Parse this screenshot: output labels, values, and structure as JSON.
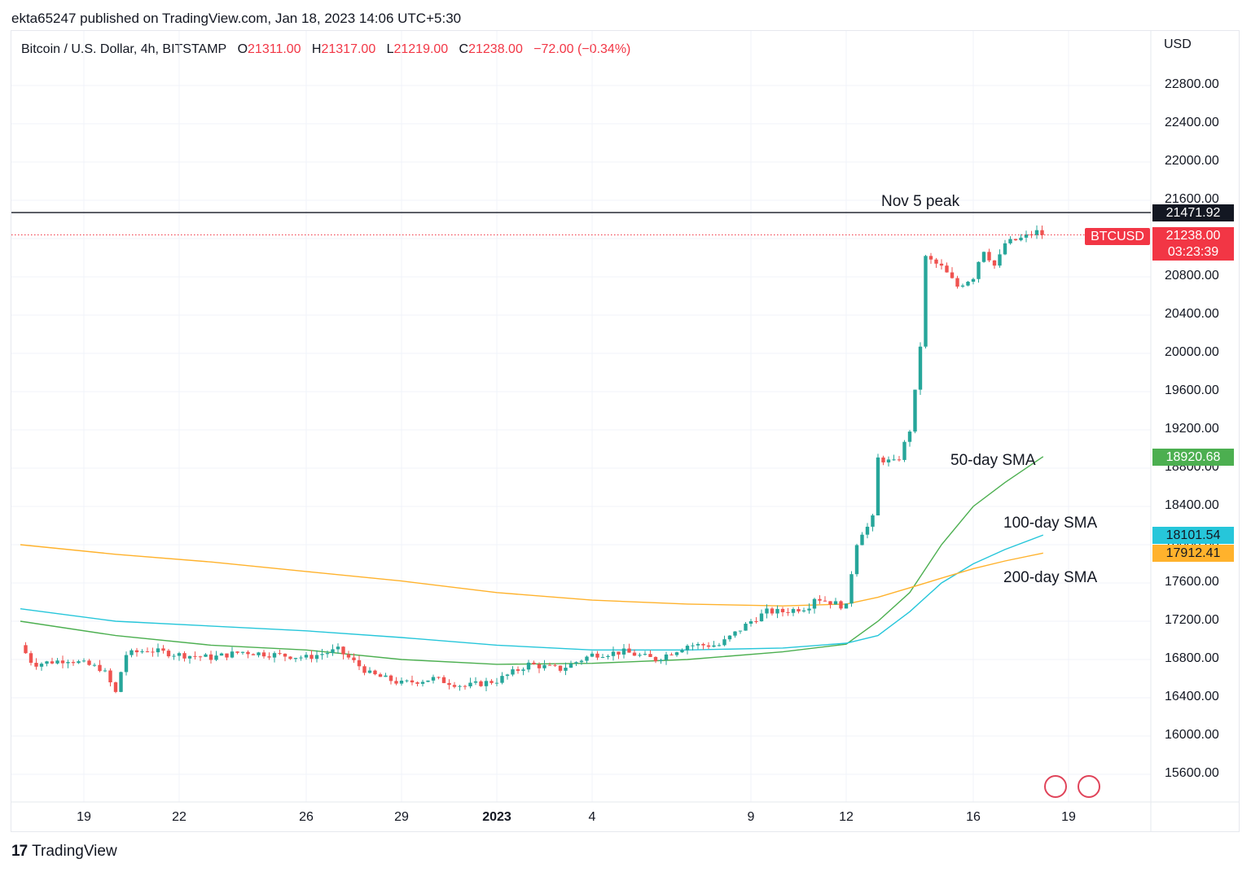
{
  "header": {
    "publisher": "ekta65247 published on TradingView.com, Jan 18, 2023 14:06 UTC+5:30"
  },
  "symbol": {
    "name": "Bitcoin / U.S. Dollar, 4h, BITSTAMP",
    "o_label": "O",
    "o_value": "21311.00",
    "h_label": "H",
    "h_value": "21317.00",
    "l_label": "L",
    "l_value": "21219.00",
    "c_label": "C",
    "c_value": "21238.00",
    "change": "−72.00 (−0.34%)"
  },
  "footer": {
    "brand": "TradingView",
    "logo": "17"
  },
  "colors": {
    "up": "#26a69a",
    "down": "#ef5350",
    "sma50": "#4caf50",
    "sma100": "#26c6da",
    "sma200": "#ffb22c",
    "peak": "#131722",
    "ticker": "#f23645"
  },
  "chart_data": {
    "type": "candlestick",
    "currency": "USD",
    "ylim": [
      15300,
      23200
    ],
    "y_ticks": [
      15600,
      16000,
      16400,
      16800,
      17200,
      17600,
      18000,
      18400,
      18800,
      19200,
      19600,
      20000,
      20400,
      20800,
      21200,
      21600,
      22000,
      22400,
      22800
    ],
    "y_tick_labels": [
      "15600.00",
      "16000.00",
      "16400.00",
      "16800.00",
      "17200.00",
      "17600.00",
      "18000.00",
      "18400.00",
      "18800.00",
      "19200.00",
      "19600.00",
      "20000.00",
      "20400.00",
      "20800.00",
      "21200.00",
      "21600.00",
      "22000.00",
      "22400.00",
      "22800.00"
    ],
    "x_ticks": [
      {
        "label": "19",
        "day": 2,
        "bold": false
      },
      {
        "label": "22",
        "day": 5,
        "bold": false
      },
      {
        "label": "26",
        "day": 9,
        "bold": false
      },
      {
        "label": "29",
        "day": 12,
        "bold": false
      },
      {
        "label": "2023",
        "day": 15,
        "bold": true
      },
      {
        "label": "4",
        "day": 18,
        "bold": false
      },
      {
        "label": "9",
        "day": 23,
        "bold": false
      },
      {
        "label": "12",
        "day": 26,
        "bold": false
      },
      {
        "label": "16",
        "day": 30,
        "bold": false
      },
      {
        "label": "19",
        "day": 33,
        "bold": false
      }
    ],
    "price_keypoints": [
      [
        0,
        16950
      ],
      [
        0.4,
        16750
      ],
      [
        1.5,
        16800
      ],
      [
        2.6,
        16700
      ],
      [
        3,
        16450
      ],
      [
        3.3,
        16850
      ],
      [
        4,
        16900
      ],
      [
        5,
        16850
      ],
      [
        6,
        16820
      ],
      [
        7,
        16880
      ],
      [
        8,
        16850
      ],
      [
        9,
        16820
      ],
      [
        10,
        16900
      ],
      [
        11,
        16650
      ],
      [
        12,
        16550
      ],
      [
        13,
        16600
      ],
      [
        14,
        16520
      ],
      [
        15,
        16580
      ],
      [
        16,
        16750
      ],
      [
        17,
        16700
      ],
      [
        18,
        16850
      ],
      [
        19,
        16880
      ],
      [
        20,
        16800
      ],
      [
        21,
        16950
      ],
      [
        22,
        16950
      ],
      [
        23,
        17200
      ],
      [
        23.5,
        17300
      ],
      [
        24,
        17300
      ],
      [
        24.8,
        17350
      ],
      [
        25,
        17450
      ],
      [
        26,
        17350
      ],
      [
        26.3,
        18000
      ],
      [
        26.6,
        18200
      ],
      [
        26.8,
        18150
      ],
      [
        27,
        18900
      ],
      [
        27.6,
        18850
      ],
      [
        28,
        19200
      ],
      [
        28.3,
        19900
      ],
      [
        28.5,
        21000
      ],
      [
        29,
        20900
      ],
      [
        29.5,
        20700
      ],
      [
        30,
        20800
      ],
      [
        30.3,
        21100
      ],
      [
        30.7,
        20900
      ],
      [
        31,
        21150
      ],
      [
        31.5,
        21200
      ],
      [
        32,
        21270
      ],
      [
        32.2,
        21238
      ]
    ],
    "series": [
      {
        "name": "50-day SMA",
        "last_label": "18920.68",
        "points": [
          [
            0,
            17200
          ],
          [
            3,
            17050
          ],
          [
            6,
            16950
          ],
          [
            9,
            16900
          ],
          [
            12,
            16800
          ],
          [
            15,
            16750
          ],
          [
            18,
            16760
          ],
          [
            21,
            16800
          ],
          [
            24,
            16880
          ],
          [
            26,
            16960
          ],
          [
            27,
            17200
          ],
          [
            28,
            17500
          ],
          [
            29,
            18000
          ],
          [
            30,
            18400
          ],
          [
            31,
            18650
          ],
          [
            32.2,
            18920.68
          ]
        ]
      },
      {
        "name": "100-day SMA",
        "last_label": "18101.54",
        "points": [
          [
            0,
            17330
          ],
          [
            3,
            17200
          ],
          [
            6,
            17150
          ],
          [
            9,
            17100
          ],
          [
            12,
            17030
          ],
          [
            15,
            16950
          ],
          [
            18,
            16900
          ],
          [
            21,
            16900
          ],
          [
            24,
            16920
          ],
          [
            26,
            16970
          ],
          [
            27,
            17050
          ],
          [
            28,
            17300
          ],
          [
            29,
            17600
          ],
          [
            30,
            17800
          ],
          [
            31,
            17950
          ],
          [
            32.2,
            18101.54
          ]
        ]
      },
      {
        "name": "200-day SMA",
        "last_label": "17912.41",
        "points": [
          [
            0,
            18000
          ],
          [
            3,
            17900
          ],
          [
            6,
            17820
          ],
          [
            9,
            17720
          ],
          [
            12,
            17620
          ],
          [
            15,
            17500
          ],
          [
            18,
            17420
          ],
          [
            21,
            17380
          ],
          [
            24,
            17360
          ],
          [
            26,
            17380
          ],
          [
            27,
            17450
          ],
          [
            28,
            17550
          ],
          [
            29,
            17650
          ],
          [
            30,
            17750
          ],
          [
            31,
            17830
          ],
          [
            32.2,
            17912.41
          ]
        ]
      }
    ],
    "peak": {
      "label": "Nov 5 peak",
      "value": "21471.92",
      "y": 21471.92
    },
    "last_price": {
      "ticker": "BTCUSD",
      "value": "21238.00",
      "y": 21238,
      "countdown": "03:23:39"
    },
    "candles_per_day": 6,
    "day_range": [
      0,
      32.2
    ]
  }
}
